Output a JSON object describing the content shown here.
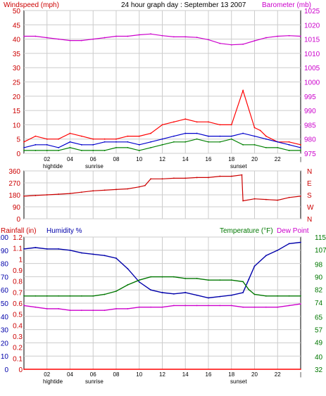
{
  "header": {
    "left_title": "Windspeed (mph)",
    "center_title": "24 hour graph day : September 13 2007",
    "right_title": "Barometer (mb)"
  },
  "bottom_header": {
    "rainfall_label": "Rainfall (in)",
    "humidity_label": "Humidity %",
    "temperature_label": "Temperature (°F)",
    "dewpoint_label": "Dew Point"
  },
  "markers": {
    "hightide": "hightide",
    "sunrise": "sunrise",
    "sunset": "sunset"
  },
  "colors": {
    "windspeed": "#ff0000",
    "wind_average": "#0000cc",
    "wind_lull": "#008000",
    "barometer": "#cc00cc",
    "direction": "#cc0000",
    "humidity": "#0000aa",
    "temperature": "#007700",
    "dewpoint": "#cc00cc",
    "rainfall": "#ff0000",
    "grid": "#cccccc",
    "frame": "#000000"
  },
  "chart_data": [
    {
      "type": "line",
      "title": "24 hour graph day : September 13 2007",
      "x_ticks": [
        "02",
        "04",
        "06",
        "08",
        "10",
        "12",
        "14",
        "16",
        "18",
        "20",
        "22",
        "|"
      ],
      "x_range": [
        0,
        24
      ],
      "left_axis": {
        "label": "Windspeed (mph)",
        "ticks": [
          0,
          5,
          10,
          15,
          20,
          25,
          30,
          35,
          40,
          45,
          50
        ],
        "range": [
          0,
          50
        ]
      },
      "right_axis": {
        "label": "Barometer (mb)",
        "ticks": [
          975,
          980,
          985,
          990,
          995,
          1000,
          1005,
          1010,
          1015,
          1020,
          1025
        ],
        "range": [
          975,
          1025
        ]
      },
      "series": [
        {
          "name": "Barometer",
          "axis": "right",
          "x": [
            0,
            1,
            2,
            3,
            4,
            5,
            6,
            7,
            8,
            9,
            10,
            11,
            12,
            13,
            14,
            15,
            16,
            17,
            18,
            19,
            20,
            21,
            22,
            23,
            24
          ],
          "values": [
            1016,
            1016,
            1015.5,
            1015,
            1014.5,
            1014.5,
            1015,
            1015.5,
            1016,
            1016,
            1016.5,
            1016.8,
            1016.2,
            1015.8,
            1015.8,
            1015.6,
            1014.8,
            1013.5,
            1013,
            1013.2,
            1014.4,
            1015.5,
            1016,
            1016.2,
            1016
          ]
        },
        {
          "name": "Windspeed",
          "x": [
            0,
            1,
            2,
            3,
            4,
            5,
            6,
            7,
            8,
            9,
            10,
            11,
            12,
            13,
            14,
            15,
            16,
            17,
            18,
            19,
            20,
            20.5,
            21,
            22,
            23,
            24
          ],
          "values": [
            4,
            6,
            5,
            5,
            7,
            6,
            5,
            5,
            5,
            6,
            6,
            7,
            10,
            11,
            12,
            11,
            11,
            10,
            10,
            22,
            9,
            8,
            6,
            4,
            4,
            3
          ]
        },
        {
          "name": "Wind average",
          "x": [
            0,
            1,
            2,
            3,
            4,
            5,
            6,
            7,
            8,
            9,
            10,
            11,
            12,
            13,
            14,
            15,
            16,
            17,
            18,
            19,
            20,
            21,
            22,
            23,
            24
          ],
          "values": [
            2,
            3,
            3,
            2,
            4,
            3,
            3,
            4,
            4,
            4,
            3,
            4,
            5,
            6,
            7,
            7,
            6,
            6,
            6,
            7,
            6,
            5,
            4,
            3,
            2
          ]
        },
        {
          "name": "Wind lull",
          "x": [
            0,
            1,
            2,
            3,
            4,
            5,
            6,
            7,
            8,
            9,
            10,
            11,
            12,
            13,
            14,
            15,
            16,
            17,
            18,
            19,
            20,
            21,
            22,
            23,
            24
          ],
          "values": [
            1,
            1,
            1,
            1,
            2,
            1,
            1,
            1,
            2,
            2,
            1,
            2,
            3,
            4,
            4,
            5,
            4,
            4,
            5,
            3,
            3,
            2,
            2,
            1,
            1
          ]
        }
      ]
    },
    {
      "type": "line",
      "left_axis": {
        "ticks": [
          0,
          90,
          180,
          270,
          360
        ],
        "range": [
          0,
          360
        ]
      },
      "right_axis": {
        "ticks": [
          "N",
          "W",
          "S",
          "E",
          "N"
        ]
      },
      "series": [
        {
          "name": "Wind direction",
          "x": [
            0,
            1,
            2,
            3,
            4,
            5,
            6,
            7,
            8,
            9,
            10,
            10.5,
            11,
            12,
            13,
            14,
            15,
            16,
            17,
            18,
            18.9,
            19,
            20,
            21,
            22,
            23,
            24
          ],
          "values": [
            170,
            175,
            180,
            185,
            190,
            200,
            210,
            215,
            220,
            225,
            240,
            250,
            300,
            300,
            305,
            305,
            310,
            310,
            320,
            320,
            330,
            135,
            150,
            145,
            140,
            160,
            170
          ]
        }
      ]
    },
    {
      "type": "line",
      "humidity_axis": {
        "ticks": [
          0,
          10,
          20,
          30,
          40,
          50,
          60,
          70,
          80,
          90,
          100
        ],
        "range": [
          0,
          100
        ]
      },
      "rainfall_axis": {
        "ticks": [
          0,
          0.1,
          0.2,
          0.3,
          0.4,
          0.5,
          0.6,
          0.7,
          0.8,
          0.9,
          1,
          1.1,
          1.2
        ],
        "range": [
          0,
          1.2
        ]
      },
      "temperature_axis": {
        "ticks": [
          32,
          40,
          49,
          57,
          65,
          74,
          82,
          90,
          98,
          107,
          115
        ],
        "range": [
          32,
          115
        ]
      },
      "series": [
        {
          "name": "Humidity",
          "axis": "humidity",
          "x": [
            0,
            1,
            2,
            3,
            4,
            5,
            6,
            7,
            8,
            9,
            10,
            11,
            12,
            13,
            14,
            15,
            16,
            17,
            18,
            19,
            19.5,
            20,
            21,
            22,
            23,
            24
          ],
          "values": [
            91,
            92,
            91,
            91,
            90,
            88,
            87,
            86,
            84,
            76,
            66,
            60,
            58,
            57,
            58,
            56,
            54,
            55,
            56,
            58,
            68,
            78,
            86,
            90,
            95,
            96
          ]
        },
        {
          "name": "Temperature",
          "axis": "temperature",
          "x": [
            0,
            1,
            2,
            3,
            4,
            5,
            6,
            7,
            8,
            9,
            10,
            11,
            12,
            13,
            14,
            15,
            16,
            17,
            18,
            19,
            19.5,
            20,
            21,
            22,
            23,
            24
          ],
          "values": [
            78,
            78,
            78,
            78,
            78,
            78,
            78,
            79,
            81,
            85,
            88,
            90,
            90,
            90,
            89,
            89,
            88,
            88,
            88,
            87,
            82,
            79,
            78,
            78,
            78,
            78
          ]
        },
        {
          "name": "Dew Point",
          "axis": "temperature",
          "x": [
            0,
            1,
            2,
            3,
            4,
            5,
            6,
            7,
            8,
            9,
            10,
            11,
            12,
            13,
            14,
            15,
            16,
            17,
            18,
            19,
            20,
            21,
            22,
            23,
            24
          ],
          "values": [
            72,
            71,
            70,
            70,
            69,
            69,
            69,
            69,
            70,
            70,
            71,
            71,
            71,
            72,
            72,
            72,
            72,
            72,
            72,
            71,
            71,
            71,
            71,
            72,
            73
          ]
        },
        {
          "name": "Rainfall",
          "axis": "rainfall",
          "x": [
            0,
            24
          ],
          "values": [
            0,
            0
          ]
        }
      ]
    }
  ]
}
